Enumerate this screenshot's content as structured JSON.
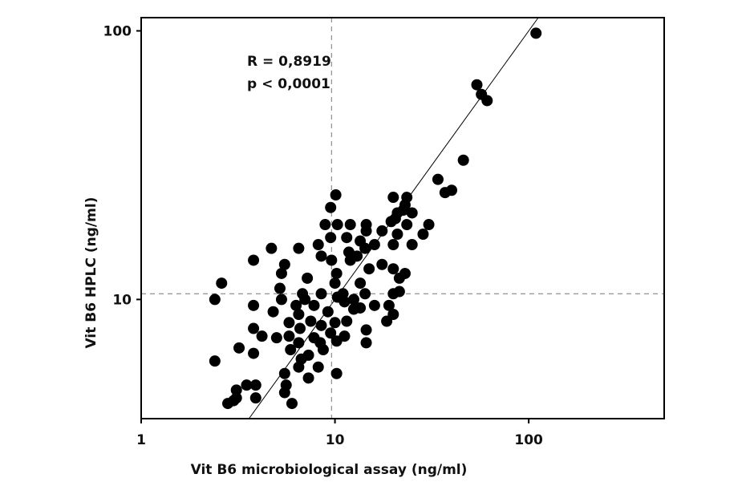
{
  "chart_data": {
    "type": "scatter",
    "xlabel": "Vit B6 microbiological assay (ng/ml)",
    "ylabel": "Vit B6 HPLC (ng/ml)",
    "xscale": "log",
    "yscale": "log",
    "xlim": [
      1,
      500
    ],
    "ylim": [
      3.6,
      112
    ],
    "x_ticks": [
      {
        "value": 1,
        "label": "1"
      },
      {
        "value": 10,
        "label": "10"
      },
      {
        "value": 100,
        "label": "100"
      }
    ],
    "y_ticks": [
      {
        "value": 10,
        "label": "10"
      },
      {
        "value": 100,
        "label": "100"
      }
    ],
    "reference_lines": {
      "identity_line": true,
      "dashed_vertical_x": 9.6,
      "dashed_horizontal_y": 10.5
    },
    "annotations": [
      "R = 0,8919",
      "p < 0,0001"
    ],
    "points": [
      [
        109,
        98
      ],
      [
        54,
        63
      ],
      [
        57,
        58
      ],
      [
        61,
        55
      ],
      [
        46,
        33
      ],
      [
        34,
        28
      ],
      [
        37,
        25
      ],
      [
        40,
        25.5
      ],
      [
        10.1,
        24.5
      ],
      [
        9.5,
        22
      ],
      [
        20,
        24
      ],
      [
        23.5,
        24
      ],
      [
        23,
        22.5
      ],
      [
        22.5,
        21.5
      ],
      [
        21,
        21
      ],
      [
        25,
        21
      ],
      [
        20.5,
        20
      ],
      [
        19.5,
        19.5
      ],
      [
        23.5,
        19
      ],
      [
        30.5,
        19
      ],
      [
        8.9,
        19
      ],
      [
        10.3,
        19
      ],
      [
        12,
        19
      ],
      [
        14.5,
        19
      ],
      [
        14.5,
        18
      ],
      [
        17.5,
        18
      ],
      [
        21,
        17.5
      ],
      [
        28.5,
        17.5
      ],
      [
        9.5,
        17
      ],
      [
        11.5,
        17
      ],
      [
        13.5,
        16.5
      ],
      [
        16,
        16
      ],
      [
        20,
        16
      ],
      [
        25,
        16
      ],
      [
        6.5,
        15.5
      ],
      [
        8.2,
        16
      ],
      [
        11.8,
        15
      ],
      [
        14.3,
        15.5
      ],
      [
        4.7,
        15.5
      ],
      [
        8.5,
        14.5
      ],
      [
        9.6,
        14
      ],
      [
        12,
        14
      ],
      [
        13,
        14.5
      ],
      [
        3.8,
        14
      ],
      [
        5.5,
        13.5
      ],
      [
        10.2,
        12.5
      ],
      [
        15,
        13
      ],
      [
        17.5,
        13.5
      ],
      [
        20,
        13
      ],
      [
        23,
        12.5
      ],
      [
        5.3,
        12.5
      ],
      [
        7.2,
        12
      ],
      [
        13.5,
        11.5
      ],
      [
        21.5,
        12
      ],
      [
        10,
        11.5
      ],
      [
        2.6,
        11.5
      ],
      [
        11,
        10.5
      ],
      [
        14.3,
        10.5
      ],
      [
        20,
        10.5
      ],
      [
        21.5,
        10.7
      ],
      [
        5.2,
        11
      ],
      [
        6.8,
        10.5
      ],
      [
        8.5,
        10.5
      ],
      [
        2.4,
        10
      ],
      [
        5.3,
        10
      ],
      [
        7,
        10
      ],
      [
        10.3,
        10.2
      ],
      [
        12.5,
        10
      ],
      [
        16,
        9.5
      ],
      [
        19,
        9.5
      ],
      [
        6.3,
        9.5
      ],
      [
        7.8,
        9.5
      ],
      [
        11.2,
        9.8
      ],
      [
        3.8,
        9.5
      ],
      [
        4.8,
        9
      ],
      [
        12.5,
        9.2
      ],
      [
        9.2,
        9
      ],
      [
        13.5,
        9.3
      ],
      [
        20,
        8.8
      ],
      [
        18.5,
        8.3
      ],
      [
        6.5,
        8.8
      ],
      [
        5.8,
        8.2
      ],
      [
        7.5,
        8.3
      ],
      [
        8.5,
        8
      ],
      [
        10,
        8.2
      ],
      [
        11.5,
        8.3
      ],
      [
        3.8,
        7.8
      ],
      [
        6.6,
        7.8
      ],
      [
        9.5,
        7.5
      ],
      [
        14.5,
        7.7
      ],
      [
        4.2,
        7.3
      ],
      [
        5.8,
        7.3
      ],
      [
        7.8,
        7.2
      ],
      [
        11.2,
        7.3
      ],
      [
        5,
        7.2
      ],
      [
        6.5,
        6.9
      ],
      [
        8.4,
        6.9
      ],
      [
        14.5,
        6.9
      ],
      [
        10.2,
        7
      ],
      [
        3.2,
        6.6
      ],
      [
        5.9,
        6.5
      ],
      [
        8.7,
        6.5
      ],
      [
        3.8,
        6.3
      ],
      [
        7.3,
        6.2
      ],
      [
        6.7,
        6
      ],
      [
        2.4,
        5.9
      ],
      [
        6.5,
        5.6
      ],
      [
        8.2,
        5.6
      ],
      [
        5.5,
        5.3
      ],
      [
        7.3,
        5.1
      ],
      [
        10.2,
        5.3
      ],
      [
        3.5,
        4.8
      ],
      [
        3.9,
        4.8
      ],
      [
        5.6,
        4.8
      ],
      [
        3.1,
        4.6
      ],
      [
        5.5,
        4.5
      ],
      [
        3.9,
        4.3
      ],
      [
        3.1,
        4.3
      ],
      [
        6,
        4.1
      ],
      [
        2.8,
        4.1
      ],
      [
        3,
        4.2
      ]
    ]
  }
}
